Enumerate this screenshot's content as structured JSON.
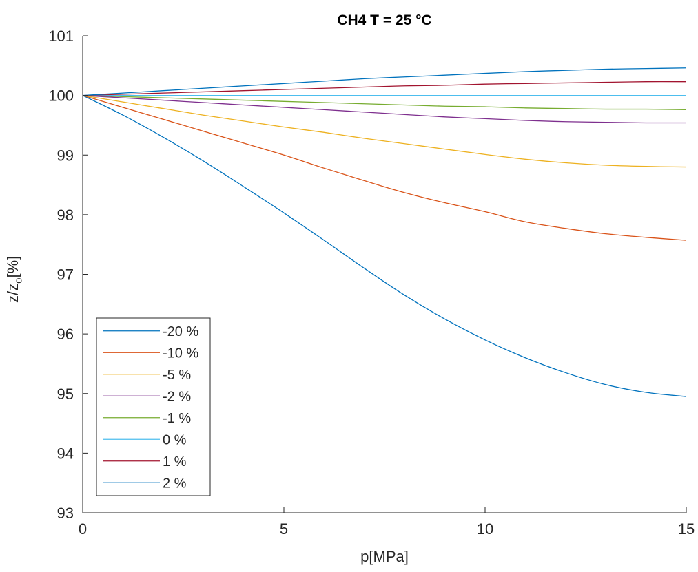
{
  "chart_data": {
    "type": "line",
    "title": "CH4 T = 25 °C",
    "xlabel": "p[MPa]",
    "ylabel_main": "z/z",
    "ylabel_sub": "o",
    "ylabel_tail": "[%]",
    "xlim": [
      0,
      15
    ],
    "ylim": [
      93,
      101
    ],
    "xticks": [
      0,
      5,
      10,
      15
    ],
    "yticks": [
      93,
      94,
      95,
      96,
      97,
      98,
      99,
      100,
      101
    ],
    "grid": false,
    "legend_position": "bottom-left",
    "x": [
      0,
      1,
      2,
      3,
      4,
      5,
      6,
      7,
      8,
      9,
      10,
      11,
      12,
      13,
      14,
      15
    ],
    "series": [
      {
        "name": "-20 %",
        "color": "#0072bd",
        "values": [
          100,
          99.67,
          99.3,
          98.9,
          98.47,
          98.03,
          97.57,
          97.1,
          96.65,
          96.25,
          95.9,
          95.6,
          95.35,
          95.15,
          95.02,
          94.95
        ]
      },
      {
        "name": "-10 %",
        "color": "#d95319",
        "values": [
          100,
          99.8,
          99.6,
          99.4,
          99.2,
          99.0,
          98.78,
          98.57,
          98.37,
          98.2,
          98.05,
          97.88,
          97.77,
          97.68,
          97.62,
          97.57
        ]
      },
      {
        "name": "-5 %",
        "color": "#edb120",
        "values": [
          100,
          99.89,
          99.78,
          99.67,
          99.57,
          99.47,
          99.38,
          99.28,
          99.19,
          99.1,
          99.01,
          98.93,
          98.87,
          98.83,
          98.81,
          98.8
        ]
      },
      {
        "name": "-2 %",
        "color": "#7e2f8e",
        "values": [
          100,
          99.96,
          99.92,
          99.88,
          99.84,
          99.8,
          99.76,
          99.72,
          99.68,
          99.64,
          99.61,
          99.58,
          99.56,
          99.55,
          99.54,
          99.54
        ]
      },
      {
        "name": "-1 %",
        "color": "#77ac30",
        "values": [
          100,
          99.98,
          99.96,
          99.94,
          99.92,
          99.9,
          99.88,
          99.86,
          99.84,
          99.82,
          99.81,
          99.79,
          99.78,
          99.77,
          99.77,
          99.76
        ]
      },
      {
        "name": "0 %",
        "color": "#4dbeee",
        "values": [
          100,
          100,
          100,
          100,
          100,
          100,
          100,
          100,
          100,
          100,
          100,
          100,
          100,
          100,
          100,
          100
        ]
      },
      {
        "name": "1 %",
        "color": "#a2142f",
        "values": [
          100,
          100.02,
          100.04,
          100.06,
          100.08,
          100.1,
          100.12,
          100.14,
          100.16,
          100.17,
          100.19,
          100.2,
          100.21,
          100.22,
          100.23,
          100.23
        ]
      },
      {
        "name": "2 %",
        "color": "#0072bd",
        "values": [
          100,
          100.04,
          100.08,
          100.12,
          100.16,
          100.2,
          100.24,
          100.28,
          100.31,
          100.34,
          100.37,
          100.4,
          100.42,
          100.44,
          100.45,
          100.46
        ]
      }
    ]
  }
}
